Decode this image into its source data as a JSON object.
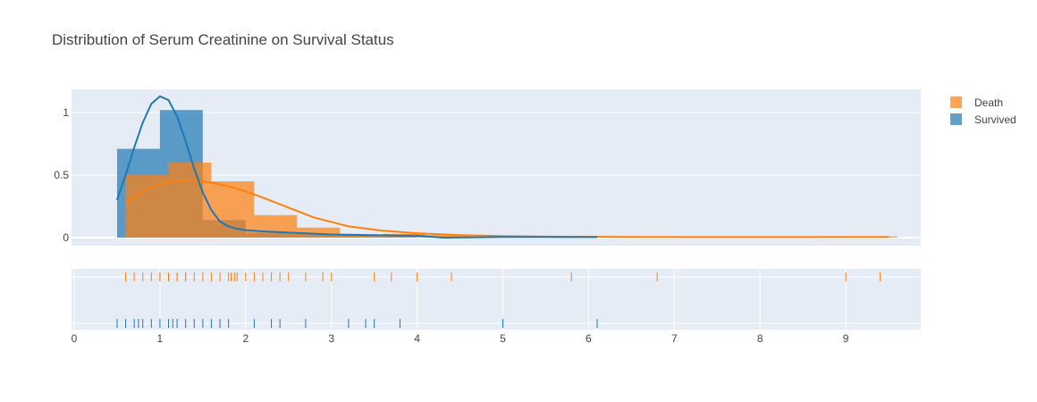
{
  "chart_data": {
    "type": "histogram-distplot",
    "title": "Distribution of Serum Creatinine on Survival Status",
    "xlabel": "",
    "ylabel": "",
    "xlim": [
      0,
      9.9
    ],
    "ylim": [
      -0.05,
      1.2
    ],
    "x_ticks": [
      "0",
      "1",
      "2",
      "3",
      "4",
      "5",
      "6",
      "7",
      "8",
      "9"
    ],
    "y_ticks": [
      "0",
      "0.5",
      "1"
    ],
    "grid": true,
    "legend_position": "top-right",
    "bin_width": 0.5,
    "series": [
      {
        "name": "Death",
        "color": "#ff7f0e",
        "hist_bins": [
          {
            "x0": 0.6,
            "x1": 1.1,
            "density": 0.5
          },
          {
            "x0": 1.1,
            "x1": 1.6,
            "density": 0.6
          },
          {
            "x0": 1.6,
            "x1": 2.1,
            "density": 0.45
          },
          {
            "x0": 2.1,
            "x1": 2.6,
            "density": 0.18
          },
          {
            "x0": 2.6,
            "x1": 3.1,
            "density": 0.08
          },
          {
            "x0": 3.1,
            "x1": 3.6,
            "density": 0.02
          },
          {
            "x0": 3.6,
            "x1": 4.1,
            "density": 0.03
          },
          {
            "x0": 4.1,
            "x1": 4.6,
            "density": 0.02
          },
          {
            "x0": 5.6,
            "x1": 6.1,
            "density": 0.01
          },
          {
            "x0": 6.6,
            "x1": 7.1,
            "density": 0.01
          },
          {
            "x0": 8.6,
            "x1": 9.1,
            "density": 0.01
          },
          {
            "x0": 9.1,
            "x1": 9.6,
            "density": 0.01
          }
        ],
        "kde": {
          "x": [
            0.6,
            0.8,
            1.0,
            1.2,
            1.4,
            1.6,
            1.8,
            2.0,
            2.2,
            2.5,
            2.8,
            3.2,
            3.6,
            4.0,
            4.5,
            5.0,
            5.5,
            6.0,
            6.5,
            7.0,
            7.5,
            8.0,
            8.5,
            9.0,
            9.5
          ],
          "y": [
            0.28,
            0.37,
            0.43,
            0.455,
            0.455,
            0.44,
            0.41,
            0.37,
            0.32,
            0.24,
            0.16,
            0.09,
            0.055,
            0.035,
            0.02,
            0.012,
            0.008,
            0.007,
            0.006,
            0.005,
            0.004,
            0.004,
            0.004,
            0.005,
            0.005
          ]
        },
        "rug": [
          0.6,
          0.7,
          0.8,
          0.9,
          1.0,
          1.0,
          1.1,
          1.2,
          1.2,
          1.3,
          1.3,
          1.4,
          1.5,
          1.6,
          1.7,
          1.8,
          1.83,
          1.87,
          1.9,
          2.0,
          2.1,
          2.2,
          2.3,
          2.4,
          2.5,
          2.7,
          2.9,
          3.0,
          3.5,
          3.7,
          4.0,
          4.4,
          5.8,
          6.8,
          9.0,
          9.4
        ]
      },
      {
        "name": "Survived",
        "color": "#1f77b4",
        "hist_bins": [
          {
            "x0": 0.5,
            "x1": 1.0,
            "density": 0.71
          },
          {
            "x0": 1.0,
            "x1": 1.5,
            "density": 1.02
          },
          {
            "x0": 1.5,
            "x1": 2.0,
            "density": 0.14
          },
          {
            "x0": 2.0,
            "x1": 2.5,
            "density": 0.04
          },
          {
            "x0": 2.5,
            "x1": 3.0,
            "density": 0.03
          },
          {
            "x0": 3.0,
            "x1": 3.5,
            "density": 0.02
          },
          {
            "x0": 3.5,
            "x1": 4.0,
            "density": 0.01
          },
          {
            "x0": 5.0,
            "x1": 5.5,
            "density": 0.01
          },
          {
            "x0": 6.0,
            "x1": 6.5,
            "density": 0.01
          }
        ],
        "kde": {
          "x": [
            0.5,
            0.6,
            0.7,
            0.8,
            0.9,
            1.0,
            1.1,
            1.2,
            1.3,
            1.4,
            1.5,
            1.6,
            1.7,
            1.8,
            1.9,
            2.0,
            2.2,
            2.5,
            3.0,
            3.5,
            4.0,
            4.3,
            4.6,
            5.0,
            5.5,
            6.0,
            6.1
          ],
          "y": [
            0.3,
            0.5,
            0.72,
            0.92,
            1.07,
            1.13,
            1.1,
            0.97,
            0.77,
            0.55,
            0.36,
            0.22,
            0.13,
            0.09,
            0.07,
            0.06,
            0.05,
            0.04,
            0.025,
            0.02,
            0.015,
            0.0,
            0.002,
            0.005,
            0.005,
            0.004,
            0.004
          ]
        },
        "rug": [
          0.5,
          0.6,
          0.7,
          0.75,
          0.8,
          0.9,
          1.0,
          1.1,
          1.15,
          1.2,
          1.3,
          1.4,
          1.5,
          1.6,
          1.7,
          1.8,
          2.1,
          2.3,
          2.4,
          2.7,
          3.2,
          3.4,
          3.5,
          3.8,
          5.0,
          6.1
        ]
      }
    ]
  }
}
